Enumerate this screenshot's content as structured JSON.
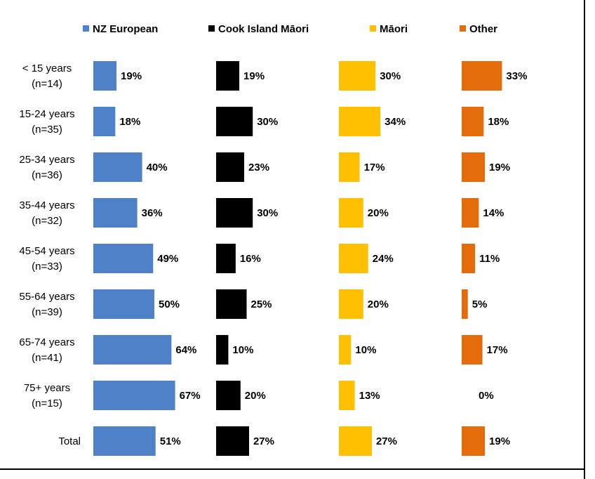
{
  "chart_data": {
    "type": "bar",
    "orientation": "horizontal",
    "panels": "one panel per series, side by side",
    "categories": [
      [
        "< 15 years",
        "(n=14)"
      ],
      [
        "15-24 years",
        "(n=35)"
      ],
      [
        "25-34 years",
        "(n=36)"
      ],
      [
        "35-44 years",
        "(n=32)"
      ],
      [
        "45-54 years",
        "(n=33)"
      ],
      [
        "55-64 years",
        "(n=39)"
      ],
      [
        "65-74 years",
        "(n=41)"
      ],
      [
        "75+ years",
        "(n=15)"
      ],
      [
        "Total"
      ]
    ],
    "series": [
      {
        "name": "NZ European",
        "color": "#4f81c8",
        "values": [
          19,
          18,
          40,
          36,
          49,
          50,
          64,
          67,
          51
        ],
        "labels": [
          "19%",
          "18%",
          "40%",
          "36%",
          "49%",
          "50%",
          "64%",
          "67%",
          "51%"
        ]
      },
      {
        "name": "Cook Island Māori",
        "color": "#000000",
        "values": [
          19,
          30,
          23,
          30,
          16,
          25,
          10,
          20,
          27
        ],
        "labels": [
          "19%",
          "30%",
          "23%",
          "30%",
          "16%",
          "25%",
          "10%",
          "20%",
          "27%"
        ]
      },
      {
        "name": "Māori",
        "color": "#ffc000",
        "values": [
          30,
          34,
          17,
          20,
          24,
          20,
          10,
          13,
          27
        ],
        "labels": [
          "30%",
          "34%",
          "17%",
          "20%",
          "24%",
          "20%",
          "10%",
          "13%",
          "27%"
        ]
      },
      {
        "name": "Other",
        "color": "#e46c0a",
        "values": [
          33,
          18,
          19,
          14,
          11,
          5,
          17,
          0,
          19
        ],
        "labels": [
          "33%",
          "18%",
          "19%",
          "14%",
          "11%",
          "5%",
          "17%",
          "0%",
          "19%"
        ]
      }
    ],
    "unit": "%",
    "legend_position": "top",
    "grid": false
  }
}
